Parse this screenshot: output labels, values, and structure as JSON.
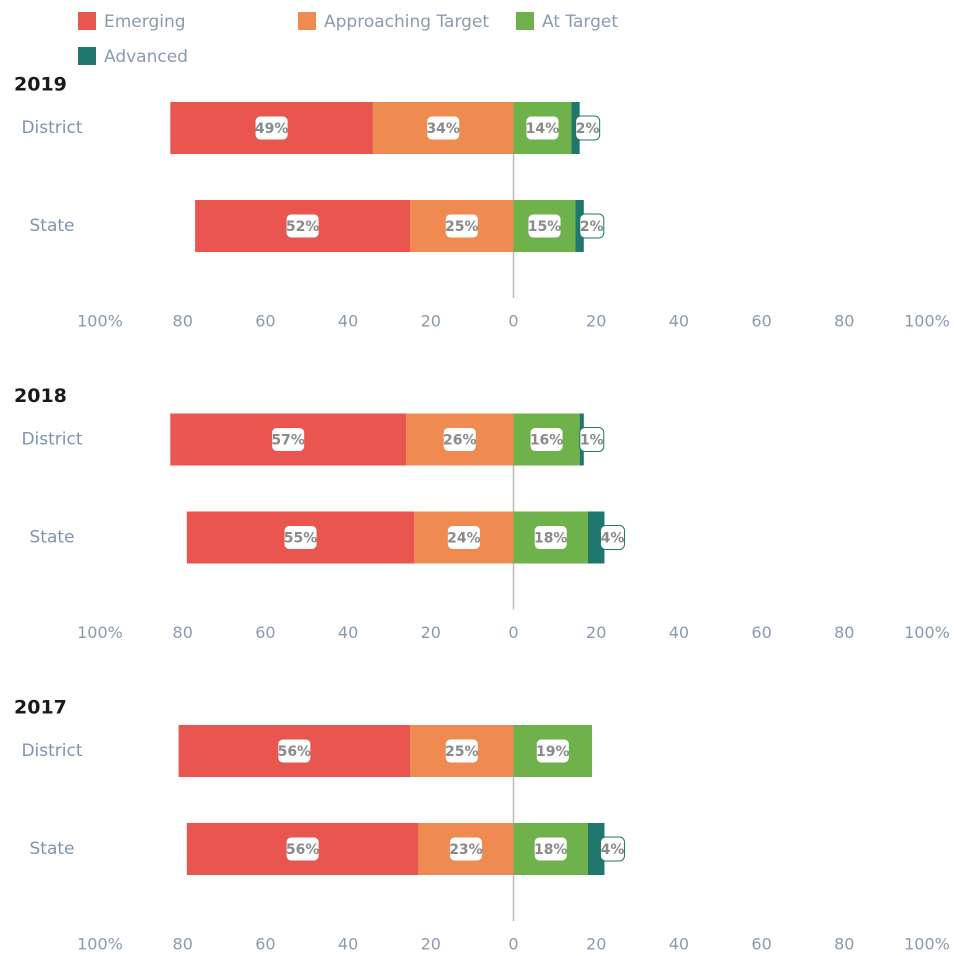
{
  "chart_data": [
    {
      "type": "diverging-bar",
      "title": "2019",
      "categories": [
        "District",
        "State"
      ],
      "series": [
        {
          "name": "Emerging",
          "color": "#e8564f",
          "side": "left",
          "values": [
            49,
            52
          ],
          "value_labels": [
            "49%",
            "52%"
          ]
        },
        {
          "name": "Approaching Target",
          "color": "#ef8b51",
          "side": "left",
          "values": [
            34,
            25
          ],
          "value_labels": [
            "34%",
            "25%"
          ]
        },
        {
          "name": "At Target",
          "color": "#6fb24b",
          "side": "right",
          "values": [
            14,
            15
          ],
          "value_labels": [
            "14%",
            "15%"
          ]
        },
        {
          "name": "Advanced",
          "color": "#1f776d",
          "side": "right",
          "values": [
            2,
            2
          ],
          "value_labels": [
            "2%",
            "2%"
          ]
        }
      ],
      "xlim": [
        -100,
        100
      ],
      "xticks": [
        {
          "value": -100,
          "label": "100%"
        },
        {
          "value": -80,
          "label": "80"
        },
        {
          "value": -60,
          "label": "60"
        },
        {
          "value": -40,
          "label": "40"
        },
        {
          "value": -20,
          "label": "20"
        },
        0,
        20,
        40,
        60,
        80,
        {
          "value": 100,
          "label": "100%"
        }
      ]
    },
    {
      "type": "diverging-bar",
      "title": "2018",
      "categories": [
        "District",
        "State"
      ],
      "series": [
        {
          "name": "Emerging",
          "color": "#e8564f",
          "side": "left",
          "values": [
            57,
            55
          ],
          "value_labels": [
            "57%",
            "55%"
          ]
        },
        {
          "name": "Approaching Target",
          "color": "#ef8b51",
          "side": "left",
          "values": [
            26,
            24
          ],
          "value_labels": [
            "26%",
            "24%"
          ]
        },
        {
          "name": "At Target",
          "color": "#6fb24b",
          "side": "right",
          "values": [
            16,
            18
          ],
          "value_labels": [
            "16%",
            "18%"
          ]
        },
        {
          "name": "Advanced",
          "color": "#1f776d",
          "side": "right",
          "values": [
            1,
            4
          ],
          "value_labels": [
            "1%",
            "4%"
          ]
        }
      ],
      "xlim": [
        -100,
        100
      ],
      "xticks": [
        {
          "value": -100,
          "label": "100%"
        },
        {
          "value": -80,
          "label": "80"
        },
        {
          "value": -60,
          "label": "60"
        },
        {
          "value": -40,
          "label": "40"
        },
        {
          "value": -20,
          "label": "20"
        },
        0,
        20,
        40,
        60,
        80,
        {
          "value": 100,
          "label": "100%"
        }
      ]
    },
    {
      "type": "diverging-bar",
      "title": "2017",
      "categories": [
        "District",
        "State"
      ],
      "series": [
        {
          "name": "Emerging",
          "color": "#e8564f",
          "side": "left",
          "values": [
            56,
            56
          ],
          "value_labels": [
            "56%",
            "56%"
          ]
        },
        {
          "name": "Approaching Target",
          "color": "#ef8b51",
          "side": "left",
          "values": [
            25,
            23
          ],
          "value_labels": [
            "25%",
            "23%"
          ]
        },
        {
          "name": "At Target",
          "color": "#6fb24b",
          "side": "right",
          "values": [
            19,
            18
          ],
          "value_labels": [
            "19%",
            "18%"
          ]
        },
        {
          "name": "Advanced",
          "color": "#1f776d",
          "side": "right",
          "values": [
            null,
            4
          ],
          "value_labels": [
            null,
            "4%"
          ]
        }
      ],
      "xlim": [
        -100,
        100
      ],
      "xticks": [
        {
          "value": -100,
          "label": "100%"
        },
        {
          "value": -80,
          "label": "80"
        },
        {
          "value": -60,
          "label": "60"
        },
        {
          "value": -40,
          "label": "40"
        },
        {
          "value": -20,
          "label": "20"
        },
        0,
        20,
        40,
        60,
        80,
        {
          "value": 100,
          "label": "100%"
        }
      ]
    }
  ]
}
